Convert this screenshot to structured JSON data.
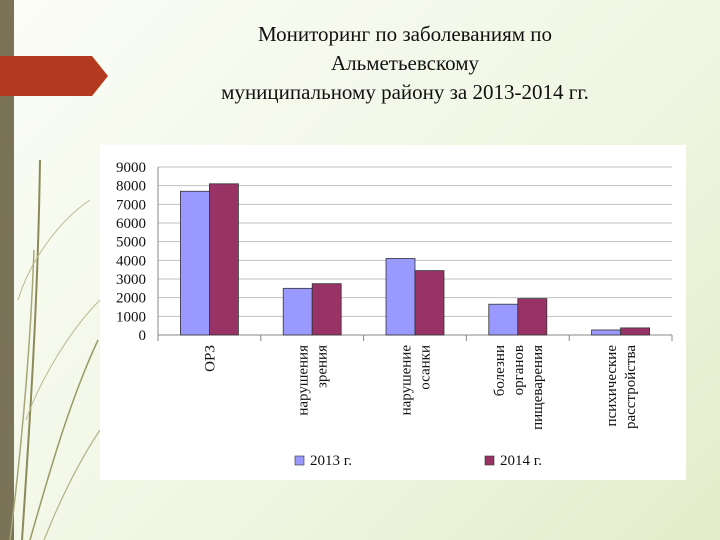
{
  "slide": {
    "title_lines": [
      "Мониторинг по заболеваниям по",
      "Альметьевскому",
      "муниципальному району за 2013-2014 гг."
    ]
  },
  "chart_data": {
    "type": "bar",
    "categories": [
      [
        "ОРЗ"
      ],
      [
        "нарушения",
        "зрения"
      ],
      [
        "нарушение",
        "осанки"
      ],
      [
        "болезни",
        "органов",
        "пищеварения"
      ],
      [
        "психические",
        "расстройства"
      ]
    ],
    "series": [
      {
        "name": "2013 г.",
        "color": "#9999ff",
        "values": [
          7700,
          2500,
          4100,
          1650,
          270
        ]
      },
      {
        "name": "2014 г.",
        "color": "#993366",
        "values": [
          8100,
          2750,
          3450,
          1950,
          380
        ]
      }
    ],
    "yticks": [
      "0",
      "1000",
      "2000",
      "3000",
      "4000",
      "5000",
      "6000",
      "7000",
      "8000",
      "9000"
    ],
    "ylim": [
      0,
      9000
    ],
    "grid": true,
    "legend_position": "bottom"
  },
  "colors": {
    "left_bar": "#7b7357",
    "arrow_accent": "#b33a1e",
    "background": "#f1f6e4"
  }
}
